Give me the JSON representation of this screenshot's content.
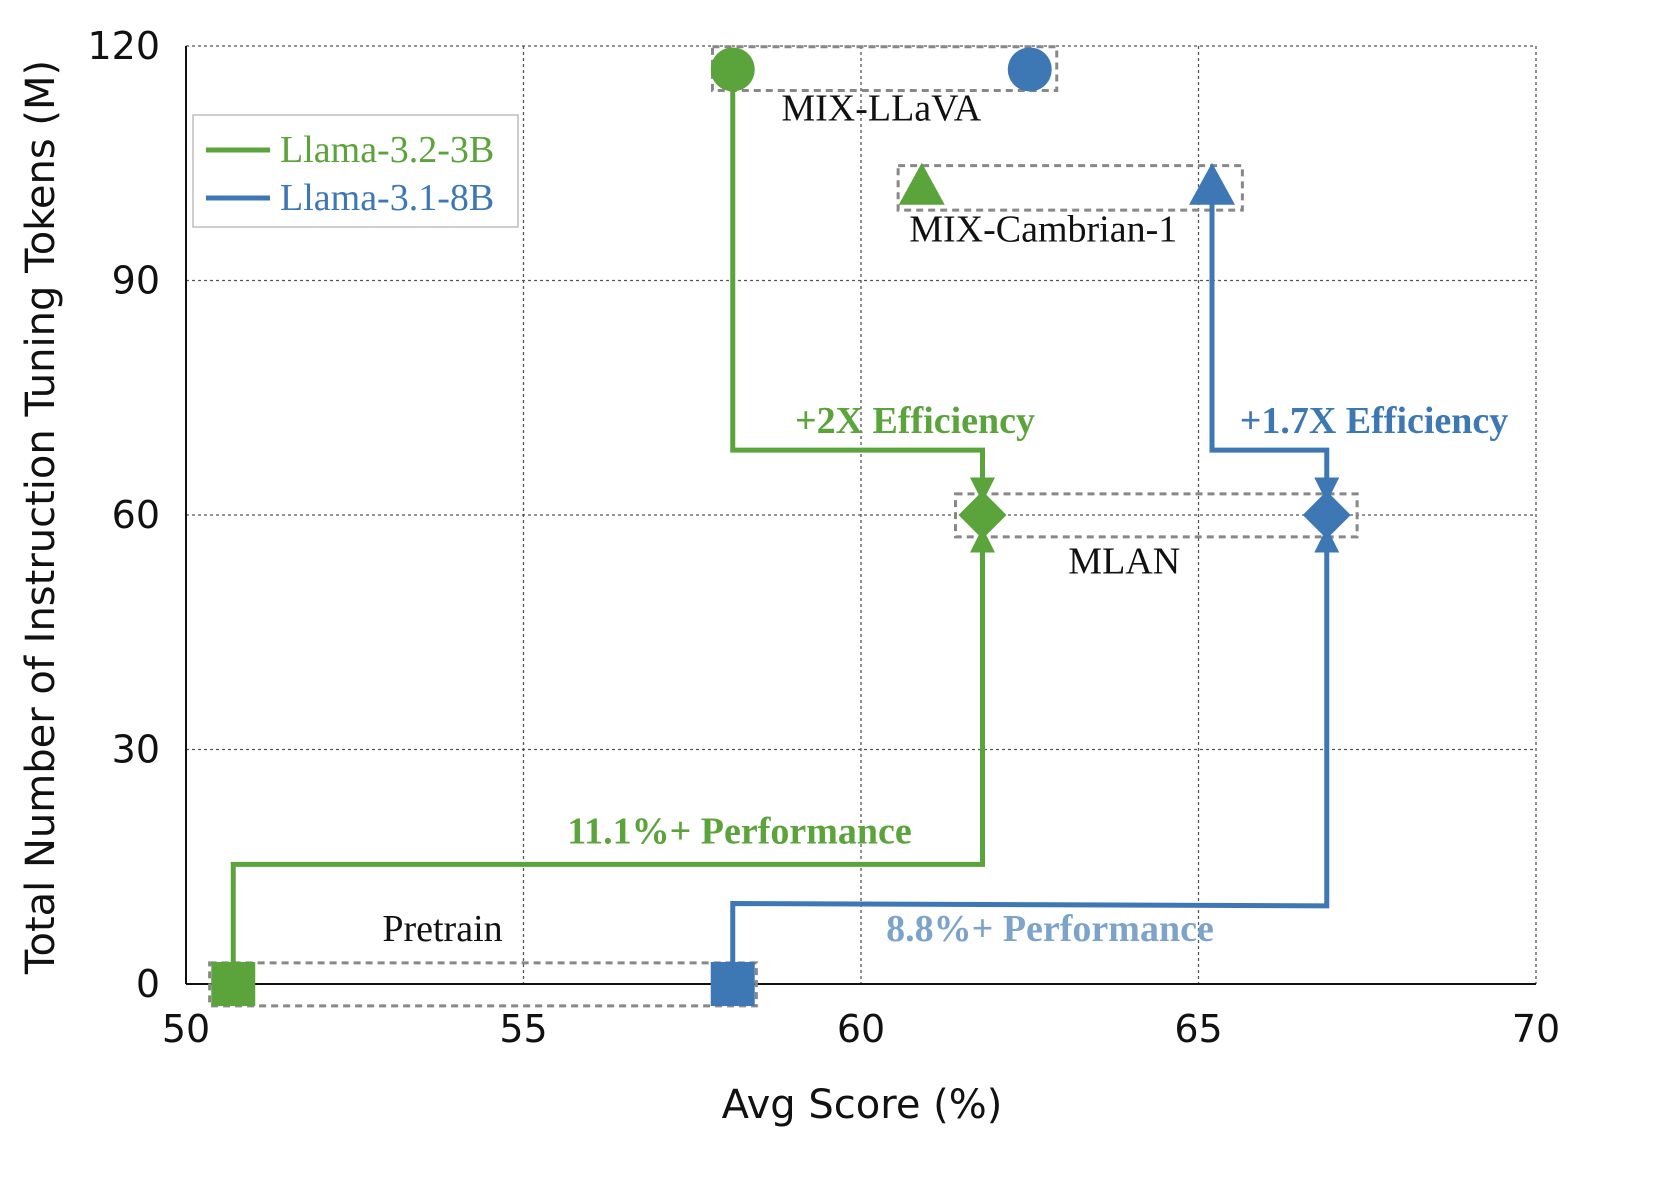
{
  "chart_data": {
    "type": "scatter",
    "xlabel": "Avg Score (%)",
    "ylabel": "Total Number of Instruction Tuning Tokens (M)",
    "xlim": [
      50,
      70
    ],
    "ylim": [
      0,
      120
    ],
    "xticks": [
      "50",
      "55",
      "60",
      "65",
      "70"
    ],
    "yticks": [
      "0",
      "30",
      "60",
      "90",
      "120"
    ],
    "xtick_values": [
      50,
      55,
      60,
      65,
      70
    ],
    "ytick_values": [
      0,
      30,
      60,
      90,
      120
    ],
    "grid": true,
    "legend_position": "top-left",
    "colors": {
      "green": "#5ba33b",
      "blue": "#3d78b5",
      "light_blue": "#7da3cb"
    },
    "series": [
      {
        "name": "Llama-3.2-3B",
        "color": "#5ba33b",
        "points": [
          {
            "method": "Pretrain",
            "marker": "square",
            "x": 50.7,
            "y": 0
          },
          {
            "method": "MIX-LLaVA",
            "marker": "circle",
            "x": 58.1,
            "y": 117
          },
          {
            "method": "MIX-Cambrian-1",
            "marker": "triangle",
            "x": 60.9,
            "y": 102
          },
          {
            "method": "MLAN",
            "marker": "diamond",
            "x": 61.8,
            "y": 60
          }
        ]
      },
      {
        "name": "Llama-3.1-8B",
        "color": "#3d78b5",
        "points": [
          {
            "method": "Pretrain",
            "marker": "square",
            "x": 58.1,
            "y": 0
          },
          {
            "method": "MIX-LLaVA",
            "marker": "circle",
            "x": 62.5,
            "y": 117
          },
          {
            "method": "MIX-Cambrian-1",
            "marker": "triangle",
            "x": 65.2,
            "y": 102
          },
          {
            "method": "MLAN",
            "marker": "diamond",
            "x": 66.9,
            "y": 60
          }
        ]
      }
    ],
    "group_labels": [
      {
        "text": "MIX-LLaVA",
        "x": 60.3,
        "y": 110.5
      },
      {
        "text": "MIX-Cambrian-1",
        "x": 62.7,
        "y": 95
      },
      {
        "text": "MLAN",
        "x": 63.9,
        "y": 52.5
      },
      {
        "text": "Pretrain",
        "x": 53.8,
        "y": 5.5
      }
    ],
    "boxes": [
      {
        "name": "MIX-LLaVA",
        "x": [
          57.8,
          62.9
        ],
        "y": [
          114.3,
          119.9
        ]
      },
      {
        "name": "MIX-Cambrian-1",
        "x": [
          60.55,
          65.65
        ],
        "y": [
          99.0,
          104.7
        ]
      },
      {
        "name": "MLAN",
        "x": [
          61.4,
          67.35
        ],
        "y": [
          57.2,
          62.7
        ]
      },
      {
        "name": "Pretrain",
        "x": [
          50.35,
          58.45
        ],
        "y": [
          -2.8,
          2.7
        ]
      }
    ],
    "paths": [
      {
        "name": "green-efficiency",
        "color": "#5ba33b",
        "points": [
          [
            58.1,
            117
          ],
          [
            58.1,
            68.3
          ],
          [
            61.8,
            68.3
          ],
          [
            61.8,
            63.2
          ]
        ]
      },
      {
        "name": "green-performance",
        "color": "#5ba33b",
        "points": [
          [
            50.7,
            0
          ],
          [
            50.7,
            15.3
          ],
          [
            61.8,
            15.3
          ],
          [
            61.8,
            56.8
          ]
        ]
      },
      {
        "name": "blue-efficiency",
        "color": "#3d78b5",
        "points": [
          [
            65.2,
            100
          ],
          [
            65.2,
            68.3
          ],
          [
            66.9,
            68.3
          ],
          [
            66.9,
            63.2
          ]
        ]
      },
      {
        "name": "blue-performance",
        "color": "#3d78b5",
        "points": [
          [
            58.1,
            0
          ],
          [
            58.1,
            10.3
          ],
          [
            66.9,
            10.0
          ],
          [
            66.9,
            56.8
          ]
        ]
      }
    ],
    "annotations": [
      {
        "text": "+2X Efficiency",
        "color": "#5ba33b",
        "x": 60.8,
        "y": 70.5
      },
      {
        "text": "11.1%+ Performance",
        "color": "#5ba33b",
        "x": 58.2,
        "y": 18
      },
      {
        "text": "+1.7X Efficiency",
        "color": "#3d78b5",
        "x": 67.6,
        "y": 70.5
      },
      {
        "text": "8.8%+ Performance",
        "color": "#7da3cb",
        "x": 62.8,
        "y": 5.5
      }
    ]
  }
}
